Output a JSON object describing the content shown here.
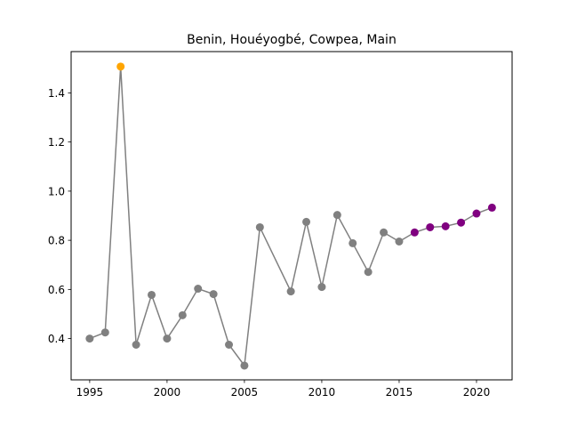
{
  "chart_data": {
    "type": "line",
    "title": "Benin, Houéyogbé, Cowpea, Main",
    "xlabel": "",
    "ylabel": "",
    "xlim": [
      1993.8,
      2022.3
    ],
    "ylim": [
      0.232,
      1.568
    ],
    "xticks": [
      1995,
      2000,
      2005,
      2010,
      2015,
      2020
    ],
    "yticks": [
      0.4,
      0.6,
      0.8,
      1.0,
      1.2,
      1.4
    ],
    "ytick_labels": [
      "0.4",
      "0.6",
      "0.8",
      "1.0",
      "1.2",
      "1.4"
    ],
    "grid": false,
    "line_color": "#808080",
    "series": [
      {
        "role": "observed",
        "color": "#808080",
        "x": [
          1995,
          1996,
          1998,
          1999,
          2000,
          2001,
          2002,
          2003,
          2004,
          2005,
          2006,
          2008,
          2009,
          2010,
          2011,
          2012,
          2013,
          2014,
          2015
        ],
        "y": [
          0.4,
          0.425,
          0.375,
          0.578,
          0.4,
          0.495,
          0.603,
          0.581,
          0.375,
          0.29,
          0.853,
          0.592,
          0.875,
          0.61,
          0.903,
          0.788,
          0.671,
          0.832,
          0.795
        ]
      },
      {
        "role": "outlier",
        "color": "#FFA500",
        "x": [
          1997
        ],
        "y": [
          1.507
        ]
      },
      {
        "role": "forecast",
        "color": "#800080",
        "x": [
          2016,
          2017,
          2018,
          2019,
          2020,
          2021
        ],
        "y": [
          0.832,
          0.853,
          0.857,
          0.872,
          0.909,
          0.933
        ]
      }
    ],
    "line_x": [
      1995,
      1996,
      1997,
      1998,
      1999,
      2000,
      2001,
      2002,
      2003,
      2004,
      2005,
      2006,
      2008,
      2009,
      2010,
      2011,
      2012,
      2013,
      2014,
      2015,
      2016,
      2017,
      2018,
      2019,
      2020,
      2021
    ],
    "line_y": [
      0.4,
      0.425,
      1.507,
      0.375,
      0.578,
      0.4,
      0.495,
      0.603,
      0.581,
      0.375,
      0.29,
      0.853,
      0.592,
      0.875,
      0.61,
      0.903,
      0.788,
      0.671,
      0.832,
      0.795,
      0.832,
      0.853,
      0.857,
      0.872,
      0.909,
      0.933
    ]
  }
}
